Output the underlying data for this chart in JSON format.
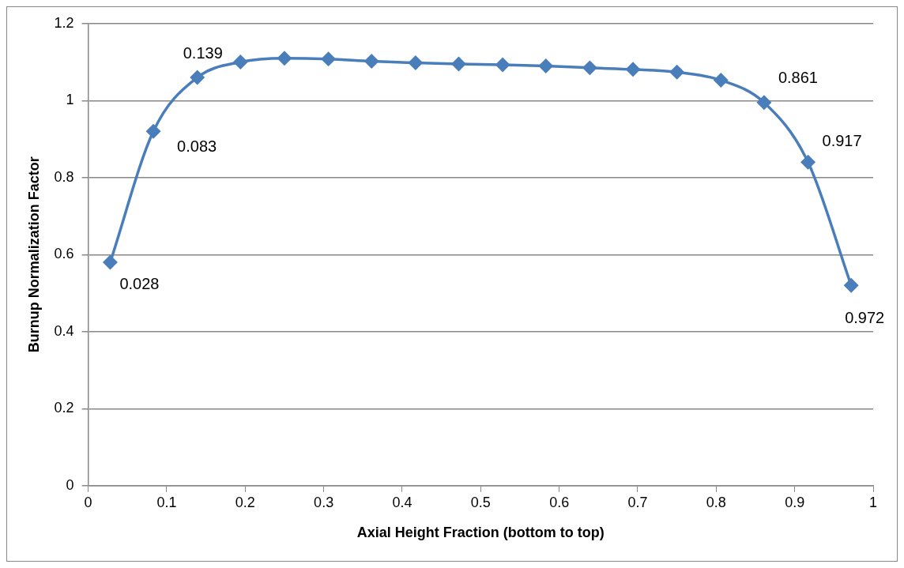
{
  "chart_data": {
    "type": "line",
    "xlabel": "Axial Height Fraction (bottom to top)",
    "ylabel": "Burnup Normalization Factor",
    "x": [
      0.028,
      0.083,
      0.139,
      0.194,
      0.25,
      0.306,
      0.361,
      0.417,
      0.472,
      0.528,
      0.583,
      0.639,
      0.694,
      0.75,
      0.806,
      0.861,
      0.917,
      0.972
    ],
    "series": [
      {
        "color": "#4a7ebb",
        "values": [
          0.58,
          0.92,
          1.06,
          1.1,
          1.11,
          1.108,
          1.102,
          1.098,
          1.095,
          1.093,
          1.09,
          1.085,
          1.081,
          1.074,
          1.053,
          0.995,
          0.84,
          0.52
        ]
      }
    ],
    "xlim": [
      0,
      1
    ],
    "xticks": [
      0,
      0.1,
      0.2,
      0.3,
      0.4,
      0.5,
      0.6,
      0.7,
      0.8,
      0.9,
      1
    ],
    "ylim": [
      0,
      1.2
    ],
    "yticks": [
      0,
      0.2,
      0.4,
      0.6,
      0.8,
      1,
      1.2
    ],
    "grid": "y",
    "legend": false,
    "marker": "diamond",
    "line_style": "solid",
    "annotations": [
      {
        "text": "0.028",
        "x": 0.028,
        "y": 0.58
      },
      {
        "text": "0.083",
        "x": 0.083,
        "y": 0.92
      },
      {
        "text": "0.139",
        "x": 0.139,
        "y": 1.06
      },
      {
        "text": "0.861",
        "x": 0.861,
        "y": 0.995
      },
      {
        "text": "0.917",
        "x": 0.917,
        "y": 0.84
      },
      {
        "text": "0.972",
        "x": 0.972,
        "y": 0.52
      }
    ]
  }
}
